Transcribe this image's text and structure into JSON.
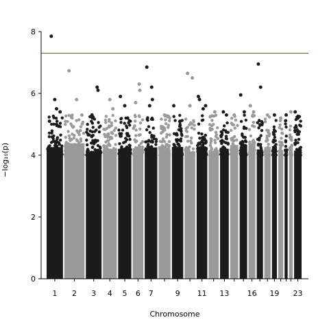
{
  "chart_data": {
    "type": "scatter",
    "subtype": "manhattan",
    "title": "",
    "xlabel": "Chromosome",
    "ylabel": "−log₁₀(p)",
    "ylim": [
      0,
      8.0
    ],
    "yticks": [
      0,
      2,
      4,
      6,
      8
    ],
    "grid": false,
    "legend": "none",
    "threshold": {
      "value": 7.3,
      "color": "#d62728"
    },
    "colors": {
      "odd": "#1b1b1b",
      "even": "#9a9a9a"
    },
    "chromosomes": [
      {
        "chr": "1",
        "label": "1",
        "top_hits": [
          [
            0.3,
            7.85
          ],
          [
            0.5,
            5.8
          ],
          [
            0.6,
            5.5
          ],
          [
            0.8,
            5.4
          ],
          [
            0.2,
            5.1
          ]
        ]
      },
      {
        "chr": "2",
        "label": "2",
        "top_hits": [
          [
            0.25,
            6.73
          ],
          [
            0.6,
            5.8
          ],
          [
            0.85,
            5.3
          ]
        ]
      },
      {
        "chr": "3",
        "label": "3",
        "top_hits": [
          [
            0.7,
            6.2
          ],
          [
            0.75,
            6.1
          ],
          [
            0.4,
            5.3
          ]
        ]
      },
      {
        "chr": "4",
        "label": "4",
        "top_hits": [
          [
            0.5,
            5.8
          ],
          [
            0.7,
            5.5
          ]
        ]
      },
      {
        "chr": "5",
        "label": "5",
        "top_hits": [
          [
            0.2,
            5.9
          ],
          [
            0.5,
            5.6
          ],
          [
            0.7,
            5.2
          ]
        ]
      },
      {
        "chr": "6",
        "label": "6",
        "top_hits": [
          [
            0.6,
            6.3
          ],
          [
            0.65,
            6.1
          ],
          [
            0.3,
            5.7
          ]
        ]
      },
      {
        "chr": "7",
        "label": "7",
        "top_hits": [
          [
            0.2,
            6.85
          ],
          [
            0.55,
            6.2
          ],
          [
            0.6,
            5.8
          ],
          [
            0.4,
            5.6
          ]
        ]
      },
      {
        "chr": "8",
        "label": "",
        "top_hits": [
          [
            0.5,
            5.3
          ]
        ]
      },
      {
        "chr": "9",
        "label": "9",
        "top_hits": [
          [
            0.2,
            5.6
          ],
          [
            0.7,
            5.1
          ]
        ]
      },
      {
        "chr": "10",
        "label": "",
        "top_hits": [
          [
            0.3,
            6.65
          ],
          [
            0.7,
            6.5
          ],
          [
            0.5,
            5.6
          ]
        ]
      },
      {
        "chr": "11",
        "label": "11",
        "top_hits": [
          [
            0.2,
            5.9
          ],
          [
            0.3,
            5.8
          ],
          [
            0.6,
            5.5
          ],
          [
            0.8,
            5.6
          ]
        ]
      },
      {
        "chr": "12",
        "label": "",
        "top_hits": [
          [
            0.6,
            5.4
          ]
        ]
      },
      {
        "chr": "13",
        "label": "13",
        "top_hits": [
          [
            0.4,
            5.4
          ],
          [
            0.7,
            5.3
          ]
        ]
      },
      {
        "chr": "14",
        "label": "",
        "top_hits": [
          [
            0.5,
            5.3
          ]
        ]
      },
      {
        "chr": "15",
        "label": "",
        "top_hits": [
          [
            0.2,
            5.95
          ],
          [
            0.6,
            5.4
          ]
        ]
      },
      {
        "chr": "16",
        "label": "16",
        "top_hits": [
          [
            0.3,
            5.6
          ],
          [
            0.7,
            5.4
          ]
        ]
      },
      {
        "chr": "17",
        "label": "",
        "top_hits": [
          [
            0.3,
            6.95
          ],
          [
            0.6,
            6.2
          ]
        ]
      },
      {
        "chr": "18",
        "label": "",
        "top_hits": [
          [
            0.5,
            5.3
          ]
        ]
      },
      {
        "chr": "19",
        "label": "19",
        "top_hits": [
          [
            0.5,
            5.3
          ]
        ]
      },
      {
        "chr": "20",
        "label": "",
        "top_hits": [
          [
            0.5,
            5.2
          ]
        ]
      },
      {
        "chr": "21",
        "label": "",
        "top_hits": [
          [
            0.5,
            5.3
          ]
        ]
      },
      {
        "chr": "22",
        "label": "",
        "top_hits": [
          [
            0.5,
            5.4
          ]
        ]
      },
      {
        "chr": "23",
        "label": "23",
        "top_hits": [
          [
            0.2,
            5.4
          ],
          [
            0.5,
            5.2
          ]
        ]
      }
    ]
  }
}
